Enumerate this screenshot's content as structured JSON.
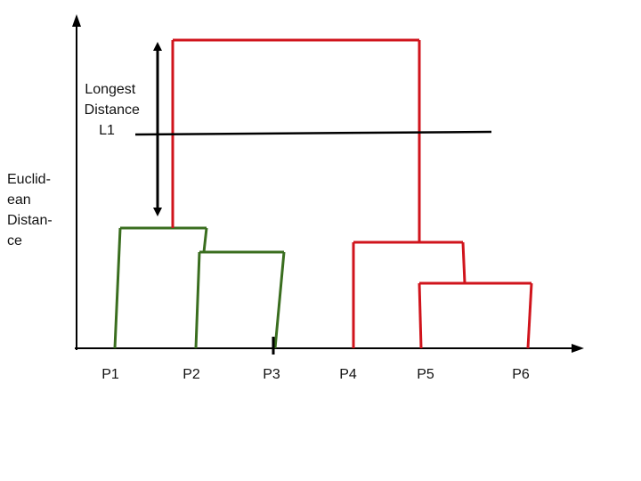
{
  "diagram": {
    "type": "dendrogram",
    "ylabel_lines": [
      "Euclid-",
      "ean",
      "Distan-",
      "ce"
    ],
    "annotation_lines": [
      "Longest",
      "Distance",
      "L1"
    ],
    "leaves": [
      "P1",
      "P2",
      "P3",
      "P4",
      "P5",
      "P6"
    ],
    "clusters": [
      {
        "name": "green",
        "members": [
          "P1",
          "P2",
          "P3"
        ],
        "color": "#3a6e1f"
      },
      {
        "name": "red",
        "members": [
          "P4",
          "P5",
          "P6"
        ],
        "color": "#d0141c"
      }
    ],
    "merges": [
      {
        "join": [
          "P2",
          "P3"
        ],
        "color": "#3a6e1f"
      },
      {
        "join": [
          "P1",
          "P2+P3"
        ],
        "color": "#3a6e1f"
      },
      {
        "join": [
          "P5",
          "P6"
        ],
        "color": "#d0141c"
      },
      {
        "join": [
          "P4",
          "P5+P6"
        ],
        "color": "#d0141c"
      },
      {
        "join": [
          "P1+P2+P3",
          "P4+P5+P6"
        ],
        "color": "#d0141c"
      }
    ],
    "colors": {
      "axis": "#000000",
      "cut_line": "#000000",
      "arrow": "#000000"
    }
  }
}
